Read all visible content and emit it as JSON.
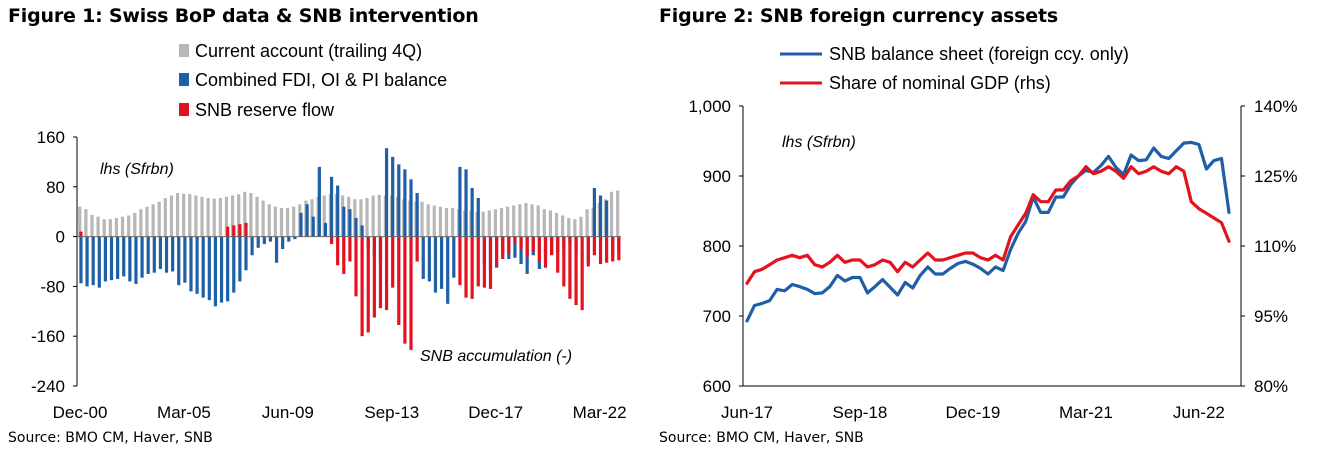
{
  "colors": {
    "gray": "#b7b7b7",
    "blue": "#1f5fa6",
    "red": "#e3121e",
    "axis": "#000000"
  },
  "figure1": {
    "title": "Figure 1: Swiss BoP data & SNB intervention",
    "source": "Source: BMO CM, Haver, SNB"
  },
  "figure2": {
    "title": "Figure 2: SNB foreign currency assets",
    "source": "Source: BMO CM, Haver, SNB"
  },
  "chart_data": [
    {
      "type": "bar",
      "id": "fig1",
      "title": "Figure 1: Swiss BoP data & SNB intervention",
      "annotations": [
        "lhs (Sfrbn)",
        "SNB accumulation (-)"
      ],
      "xlabel": "",
      "ylabel": "",
      "ylim": [
        -240,
        160
      ],
      "yticks": [
        160,
        80,
        0,
        -80,
        -160,
        -240
      ],
      "xtick_labels": [
        "Dec-00",
        "Mar-05",
        "Jun-09",
        "Sep-13",
        "Dec-17",
        "Mar-22"
      ],
      "xtick_index": [
        0,
        17,
        34,
        51,
        68,
        85
      ],
      "legend_position": "top",
      "series": [
        {
          "name": "Current account (trailing 4Q)",
          "color_key": "gray",
          "values": [
            48,
            44,
            35,
            32,
            28,
            28,
            30,
            32,
            34,
            38,
            44,
            48,
            52,
            56,
            62,
            66,
            70,
            69,
            68,
            66,
            64,
            62,
            61,
            62,
            64,
            66,
            68,
            72,
            70,
            64,
            58,
            52,
            48,
            46,
            46,
            48,
            52,
            58,
            60,
            64,
            66,
            68,
            69,
            66,
            64,
            60,
            60,
            62,
            66,
            67,
            66,
            66,
            64,
            60,
            58,
            56,
            56,
            52,
            50,
            48,
            46,
            46,
            44,
            42,
            42,
            40,
            40,
            42,
            44,
            46,
            48,
            50,
            52,
            54,
            52,
            50,
            44,
            42,
            38,
            34,
            30,
            28,
            32,
            44,
            46,
            54,
            60,
            72,
            74
          ]
        },
        {
          "name": "Combined FDI, OI & PI balance",
          "color_key": "blue",
          "values": [
            -75,
            -80,
            -78,
            -82,
            -72,
            -70,
            -68,
            -64,
            -72,
            -76,
            -66,
            -60,
            -58,
            -52,
            -58,
            -56,
            -78,
            -74,
            -88,
            -92,
            -98,
            -102,
            -112,
            -106,
            -104,
            -90,
            -72,
            -54,
            -30,
            -18,
            -12,
            -8,
            -42,
            -20,
            -8,
            -4,
            38,
            52,
            32,
            112,
            22,
            96,
            82,
            48,
            44,
            30,
            18,
            -20,
            -32,
            -40,
            142,
            128,
            116,
            108,
            92,
            70,
            -68,
            -72,
            -90,
            -84,
            -108,
            -66,
            112,
            108,
            78,
            62,
            -44,
            -52,
            -50,
            -30,
            -36,
            -34,
            -44,
            -60,
            -30,
            -52,
            -34,
            -28,
            -24,
            -20,
            -12,
            -28,
            0,
            -40,
            78,
            66,
            58,
            -30,
            -25
          ]
        },
        {
          "name": "SNB reserve flow",
          "color_key": "red",
          "values": [
            8,
            0,
            0,
            0,
            0,
            0,
            0,
            0,
            0,
            0,
            0,
            0,
            0,
            0,
            0,
            0,
            0,
            0,
            0,
            0,
            0,
            0,
            0,
            0,
            16,
            18,
            20,
            22,
            0,
            0,
            0,
            0,
            0,
            0,
            0,
            0,
            0,
            0,
            0,
            0,
            0,
            -12,
            -46,
            -60,
            -40,
            -96,
            -160,
            -154,
            -130,
            -115,
            -118,
            -82,
            -142,
            -172,
            -182,
            -40,
            0,
            0,
            0,
            0,
            0,
            0,
            -78,
            -98,
            -100,
            -80,
            -82,
            -84,
            -48,
            -36,
            -28,
            -10,
            -20,
            -32,
            -24,
            -40,
            -50,
            -30,
            -58,
            -80,
            -100,
            -110,
            -118,
            -48,
            -30,
            -44,
            -42,
            -40,
            -38
          ]
        }
      ]
    },
    {
      "type": "line",
      "id": "fig2",
      "title": "Figure 2: SNB foreign currency assets",
      "annotations": [
        "lhs (Sfrbn)"
      ],
      "xtick_labels": [
        "Jun-17",
        "Sep-18",
        "Dec-19",
        "Mar-21",
        "Jun-22"
      ],
      "xtick_index": [
        0,
        15,
        30,
        45,
        60
      ],
      "ylim_left": [
        600,
        1000
      ],
      "yticks_left": [
        1000,
        900,
        800,
        700,
        600
      ],
      "ylim_right": [
        80,
        140
      ],
      "yticks_right": [
        140,
        125,
        110,
        95,
        80
      ],
      "ytick_right_suffix": "%",
      "legend_position": "top",
      "series": [
        {
          "name": "SNB balance sheet (foreign ccy. only)",
          "axis": "left",
          "color_key": "blue",
          "values": [
            693,
            715,
            718,
            722,
            738,
            736,
            745,
            742,
            738,
            732,
            733,
            742,
            758,
            750,
            755,
            755,
            733,
            742,
            752,
            741,
            730,
            748,
            740,
            758,
            770,
            760,
            760,
            768,
            775,
            778,
            774,
            768,
            760,
            770,
            765,
            795,
            818,
            835,
            870,
            848,
            848,
            870,
            870,
            888,
            900,
            908,
            905,
            915,
            928,
            912,
            902,
            930,
            922,
            923,
            940,
            928,
            925,
            936,
            947,
            948,
            945,
            910,
            922,
            925,
            848
          ]
        },
        {
          "name": "Share of nominal GDP (rhs)",
          "axis": "right",
          "color_key": "red",
          "values": [
            102,
            104.5,
            105,
            106,
            107,
            107.5,
            108,
            107.5,
            108,
            106,
            105.5,
            106.5,
            108,
            106.5,
            107,
            107,
            105.5,
            106,
            107,
            106.5,
            104.5,
            106.5,
            105.5,
            107,
            108.5,
            107,
            107,
            107.5,
            108,
            108.5,
            108.5,
            107.5,
            107,
            108,
            107,
            112,
            114.5,
            117,
            121,
            119.5,
            119.5,
            122,
            122,
            124,
            125,
            127,
            125.5,
            126,
            127,
            126,
            124.5,
            127,
            125.5,
            126,
            127,
            126,
            125.5,
            127,
            126,
            119.5,
            118,
            117,
            116,
            115,
            111
          ]
        }
      ]
    }
  ]
}
